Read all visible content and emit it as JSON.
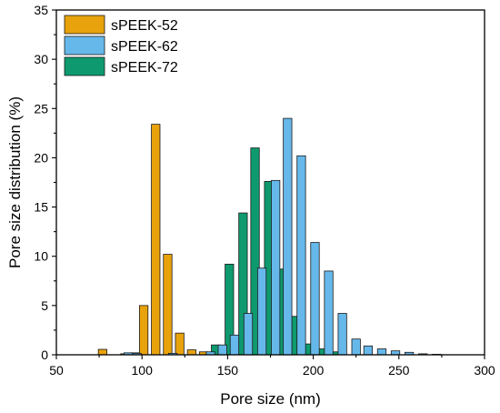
{
  "chart_data": {
    "type": "bar",
    "title": "",
    "xlabel": "Pore size (nm)",
    "ylabel": "Pore size distribution (%)",
    "xlim": [
      50,
      300
    ],
    "ylim": [
      0,
      35
    ],
    "xticks": [
      50,
      100,
      150,
      200,
      250,
      300
    ],
    "yticks": [
      0,
      5,
      10,
      15,
      20,
      25,
      30,
      35
    ],
    "bin_width": 5,
    "legend_position": "top-left",
    "series": [
      {
        "name": "sPEEK-52",
        "color": "#E8A20C",
        "x": [
          77,
          90,
          96,
          101,
          108,
          115,
          122,
          129,
          136
        ],
        "values": [
          0.55,
          0.1,
          0.2,
          5.0,
          23.4,
          10.2,
          2.2,
          0.5,
          0.3
        ]
      },
      {
        "name": "sPEEK-62",
        "color": "#66B8EA",
        "x": [
          92,
          97,
          118,
          140,
          147,
          154,
          162,
          170,
          178,
          185,
          193,
          201,
          209,
          217,
          225,
          232,
          240,
          248,
          256,
          264,
          272
        ],
        "values": [
          0.2,
          0.15,
          0.15,
          0.3,
          1.0,
          2.0,
          4.2,
          8.8,
          17.7,
          24.0,
          20.2,
          11.4,
          8.5,
          4.2,
          1.6,
          0.9,
          0.6,
          0.4,
          0.25,
          0.1,
          0.05
        ]
      },
      {
        "name": "sPEEK-72",
        "color": "#0E9A6E",
        "x": [
          143,
          151,
          159,
          166,
          174,
          181,
          189,
          197,
          204,
          212
        ],
        "values": [
          1.0,
          9.2,
          14.4,
          21.0,
          17.6,
          8.7,
          3.9,
          1.1,
          0.6,
          0.3
        ]
      }
    ]
  }
}
